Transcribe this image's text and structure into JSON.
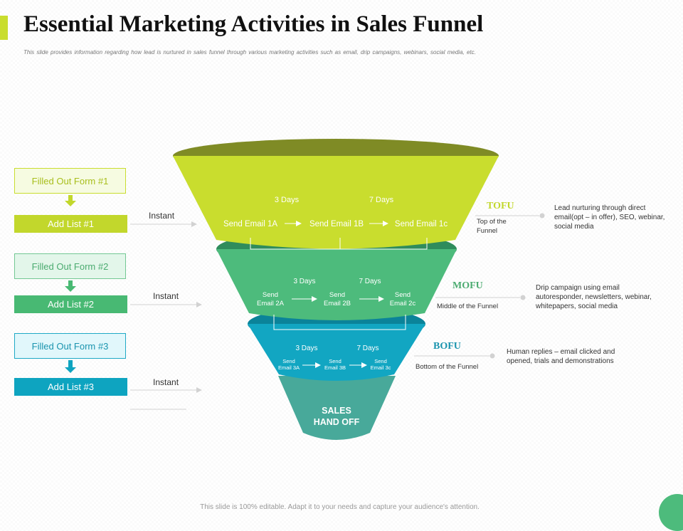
{
  "title": "Essential Marketing Activities in Sales Funnel",
  "subtitle": "This slide provides information  regarding  how lead  is nurtured  in sales funnel  through  various marketing  activities such as email,  drip campaigns,   webinars,  social media,  etc.",
  "footer": "This slide is 100% editable. Adapt it to your needs and capture your audience's attention.",
  "colors": {
    "tofu": "#c9dd2e",
    "mofu": "#4dbb7c",
    "bofu": "#12a6c2",
    "sales": "#48a99a",
    "tofu_label": "#c2d72c",
    "mofu_label": "#4bab70",
    "bofu_label": "#1a94ae"
  },
  "left_panel": {
    "forms": [
      "Filled Out Form #1",
      "Filled Out Form #2",
      "Filled Out Form #3"
    ],
    "lists": [
      "Add List #1",
      "Add List #2",
      "Add List #3"
    ],
    "instant": [
      "Instant",
      "Instant",
      "Instant"
    ]
  },
  "funnel": {
    "tofu": {
      "days": [
        "3 Days",
        "7 Days"
      ],
      "emails": [
        "Send Email 1A",
        "Send Email 1B",
        "Send Email 1c"
      ]
    },
    "mofu": {
      "days": [
        "3 Days",
        "7 Days"
      ],
      "emails": [
        [
          "Send",
          "Email 2A"
        ],
        [
          "Send",
          "Email 2B"
        ],
        [
          "Send",
          "Email 2c"
        ]
      ]
    },
    "bofu": {
      "days": [
        "3 Days",
        "7 Days"
      ],
      "emails": [
        [
          "Send",
          "Email 3A"
        ],
        [
          "Send",
          "Email 3B"
        ],
        [
          "Send",
          "Email 3c"
        ]
      ]
    },
    "sales": [
      "SALES",
      "HAND OFF"
    ]
  },
  "stages": {
    "tofu": {
      "name": "TOFU",
      "label": [
        "Top of the",
        "Funnel"
      ],
      "desc": [
        "Lead nurturing through direct",
        "email(opt – in offer), SEO, webinar,",
        "social media"
      ]
    },
    "mofu": {
      "name": "MOFU",
      "label": [
        "Middle of the Funnel"
      ],
      "desc": [
        "Drip campaign using email",
        "autoresponder, newsletters, webinar,",
        "whitepapers, social media"
      ]
    },
    "bofu": {
      "name": "BOFU",
      "label": [
        "Bottom of the Funnel"
      ],
      "desc": [
        "Human replies – email clicked and",
        "opened, trials and demonstrations"
      ]
    }
  }
}
